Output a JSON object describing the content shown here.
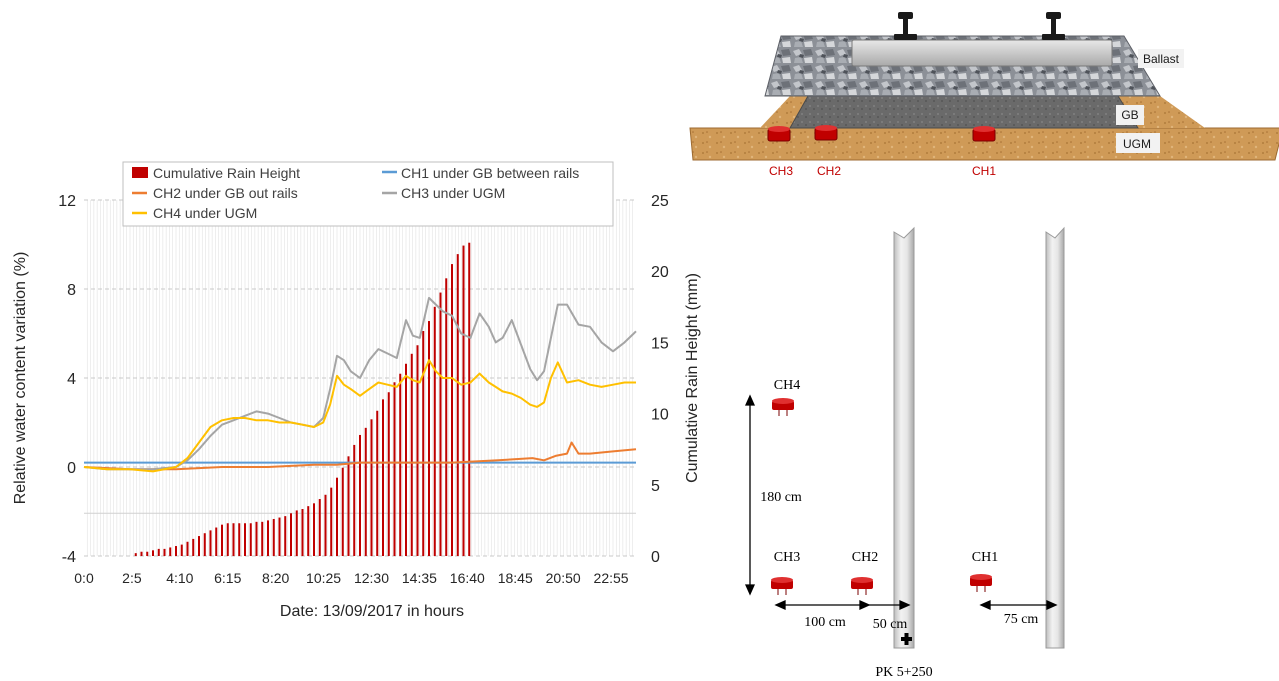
{
  "chart_data": {
    "type": "bar+line",
    "title": "",
    "xlabel": "Date: 13/09/2017 in hours",
    "ylabel_left": "Relative water content variation (%)",
    "ylabel_right": "Cumulative Rain Height (mm)",
    "ylim_left": [
      -4,
      12
    ],
    "ylim_right": [
      0,
      25
    ],
    "yticks_left": [
      "-4",
      "0",
      "4",
      "8",
      "12"
    ],
    "yticks_right": [
      "0",
      "5",
      "10",
      "15",
      "20",
      "25"
    ],
    "xticks": [
      "0:0",
      "2:5",
      "4:10",
      "6:15",
      "8:20",
      "10:25",
      "12:30",
      "14:35",
      "16:40",
      "18:45",
      "20:50",
      "22:55"
    ],
    "x_range_hours": [
      0,
      24
    ],
    "grid": "horizontal dashed",
    "legend_position": "top",
    "legend": {
      "rain": "Cumulative Rain Height",
      "ch1": "CH1 under GB between rails",
      "ch2": "CH2 under GB out rails",
      "ch3": "CH3 under UGM",
      "ch4": "CH4 under UGM"
    },
    "colors": {
      "rain": "#c00000",
      "ch1": "#5b9bd5",
      "ch2": "#ed7d31",
      "ch3": "#a5a5a5",
      "ch4": "#ffc000"
    },
    "rain_bars": {
      "hours": [
        2.25,
        2.5,
        2.75,
        3.0,
        3.25,
        3.5,
        3.75,
        4.0,
        4.25,
        4.5,
        4.75,
        5.0,
        5.25,
        5.5,
        5.75,
        6.0,
        6.25,
        6.5,
        6.75,
        7.0,
        7.25,
        7.5,
        7.75,
        8.0,
        8.25,
        8.5,
        8.75,
        9.0,
        9.25,
        9.5,
        9.75,
        10.0,
        10.25,
        10.5,
        10.75,
        11.0,
        11.25,
        11.5,
        11.75,
        12.0,
        12.25,
        12.5,
        12.75,
        13.0,
        13.25,
        13.5,
        13.75,
        14.0,
        14.25,
        14.5,
        14.75,
        15.0,
        15.25,
        15.5,
        15.75,
        16.0,
        16.25,
        16.5,
        16.75
      ],
      "values": [
        0.2,
        0.3,
        0.3,
        0.4,
        0.5,
        0.5,
        0.6,
        0.7,
        0.8,
        1.0,
        1.2,
        1.4,
        1.6,
        1.8,
        2.0,
        2.2,
        2.3,
        2.3,
        2.3,
        2.3,
        2.3,
        2.4,
        2.4,
        2.5,
        2.6,
        2.7,
        2.8,
        3.0,
        3.2,
        3.3,
        3.5,
        3.7,
        4.0,
        4.3,
        4.8,
        5.5,
        6.2,
        7.0,
        7.8,
        8.5,
        9.0,
        9.6,
        10.2,
        11.0,
        11.5,
        12.2,
        12.8,
        13.5,
        14.2,
        14.8,
        15.8,
        16.5,
        17.5,
        18.5,
        19.5,
        20.5,
        21.2,
        21.8,
        22.0
      ]
    },
    "series": [
      {
        "key": "ch1",
        "name": "CH1 under GB between rails",
        "x": [
          0,
          24
        ],
        "y": [
          0.2,
          0.2
        ]
      },
      {
        "key": "ch2",
        "name": "CH2 under GB out rails",
        "x": [
          0,
          2,
          4,
          6,
          8,
          10,
          11,
          12,
          14,
          16,
          18,
          19.5,
          20,
          20.5,
          21,
          21.2,
          21.5,
          22,
          23,
          24
        ],
        "y": [
          0.0,
          -0.1,
          -0.1,
          0.0,
          0.0,
          0.1,
          0.1,
          0.2,
          0.2,
          0.2,
          0.3,
          0.4,
          0.3,
          0.5,
          0.6,
          1.1,
          0.6,
          0.6,
          0.7,
          0.8
        ]
      },
      {
        "key": "ch3",
        "name": "CH3 under UGM",
        "x": [
          0,
          1,
          2,
          3,
          4,
          4.5,
          5,
          5.5,
          6,
          6.5,
          7,
          7.5,
          8,
          8.5,
          9,
          9.5,
          10,
          10.4,
          10.7,
          11.0,
          11.3,
          11.6,
          12.0,
          12.4,
          12.8,
          13.2,
          13.6,
          14.0,
          14.3,
          14.6,
          15.0,
          15.3,
          15.6,
          16.0,
          16.4,
          16.8,
          17.2,
          17.6,
          17.9,
          18.2,
          18.6,
          19.0,
          19.4,
          19.7,
          20.0,
          20.3,
          20.6,
          21.0,
          21.5,
          22.0,
          22.5,
          23.0,
          23.5,
          24.0
        ],
        "y": [
          0.0,
          -0.1,
          -0.1,
          -0.1,
          0.0,
          0.3,
          0.8,
          1.4,
          1.9,
          2.1,
          2.3,
          2.5,
          2.4,
          2.2,
          2.0,
          1.9,
          1.8,
          2.2,
          3.5,
          5.0,
          4.8,
          4.3,
          4.0,
          4.8,
          5.3,
          5.1,
          4.9,
          6.6,
          5.9,
          5.8,
          7.6,
          7.3,
          7.0,
          6.8,
          6.0,
          5.8,
          6.9,
          6.3,
          5.6,
          5.8,
          6.6,
          5.5,
          4.4,
          3.9,
          4.3,
          5.8,
          7.3,
          7.3,
          6.4,
          6.3,
          5.6,
          5.2,
          5.6,
          6.1
        ]
      },
      {
        "key": "ch4",
        "name": "CH4 under UGM",
        "x": [
          0,
          1,
          2,
          3,
          4,
          4.5,
          5,
          5.5,
          6,
          6.5,
          7,
          7.5,
          8,
          8.5,
          9,
          9.5,
          10,
          10.4,
          10.7,
          11.0,
          11.3,
          11.6,
          12.0,
          12.4,
          12.8,
          13.2,
          13.6,
          14.0,
          14.3,
          14.6,
          15.0,
          15.3,
          15.6,
          16.0,
          16.4,
          16.8,
          17.2,
          17.6,
          17.9,
          18.2,
          18.6,
          19.0,
          19.4,
          19.7,
          20.0,
          20.3,
          20.6,
          21.0,
          21.5,
          22.0,
          22.5,
          23.0,
          23.5,
          24.0
        ],
        "y": [
          0.0,
          -0.1,
          -0.1,
          -0.2,
          0.0,
          0.4,
          1.1,
          1.8,
          2.1,
          2.2,
          2.2,
          2.1,
          2.1,
          2.0,
          2.0,
          1.9,
          1.8,
          2.0,
          2.8,
          4.1,
          3.7,
          3.5,
          3.2,
          3.5,
          3.8,
          3.7,
          3.6,
          4.1,
          3.9,
          3.8,
          4.8,
          4.3,
          4.0,
          4.0,
          3.7,
          3.8,
          4.2,
          3.8,
          3.6,
          3.4,
          3.3,
          3.1,
          2.8,
          2.7,
          2.9,
          4.0,
          4.7,
          3.8,
          3.9,
          3.7,
          3.6,
          3.7,
          3.8,
          3.8
        ]
      }
    ]
  },
  "cross_section": {
    "layer_labels": {
      "ballast": "Ballast",
      "gb": "GB",
      "ugm": "UGM"
    },
    "sensor_labels": [
      "CH3",
      "CH2",
      "CH1"
    ],
    "colors": {
      "sensor_label": "#c00000",
      "sensor": "#c00000",
      "ugm": "#c8934f",
      "gb": "#6e6e6e",
      "ballast": "#9a9fa6"
    }
  },
  "plan_view": {
    "sensor_labels": {
      "ch4": "CH4",
      "ch3": "CH3",
      "ch2": "CH2",
      "ch1": "CH1"
    },
    "dimensions": {
      "vertical": "180 cm",
      "ch3_ch2": "100 cm",
      "ch2_rail": "50 cm",
      "ch1_rail": "75 cm"
    },
    "pk_label": "PK 5+250"
  }
}
